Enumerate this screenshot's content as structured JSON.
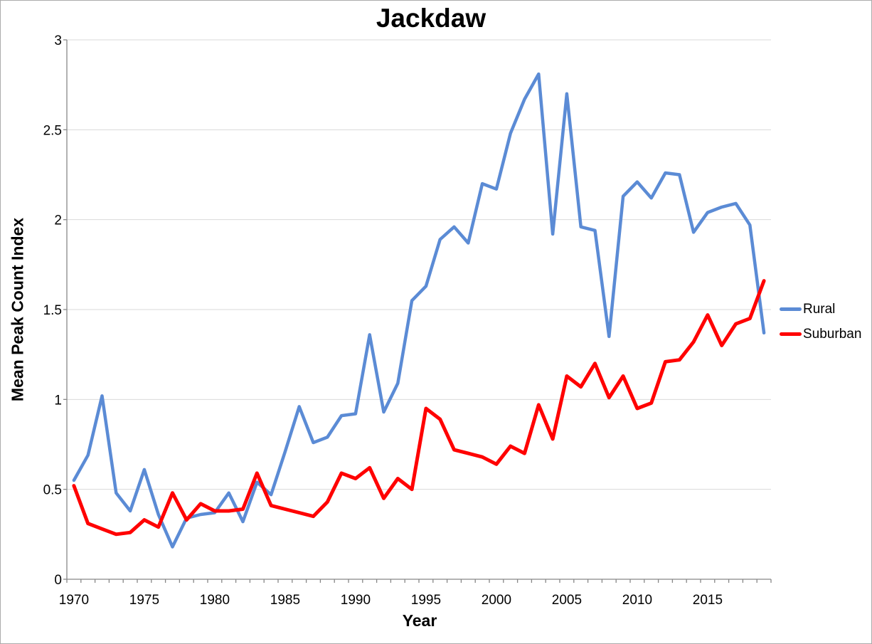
{
  "chart_data": {
    "type": "line",
    "title": "Jackdaw",
    "xlabel": "Year",
    "ylabel": "Mean Peak Count Index",
    "ylim": [
      0,
      3
    ],
    "xlim": [
      1970,
      2019
    ],
    "grid": "horizontal-only",
    "grid_color": "#D9D9D9",
    "axis_color": "#878787",
    "legend_position": "right-middle",
    "yticks": [
      0,
      0.5,
      1,
      1.5,
      2,
      2.5,
      3
    ],
    "ytick_labels": [
      "0",
      "0.5",
      "1",
      "1.5",
      "2",
      "2.5",
      "3"
    ],
    "xticks": [
      1970,
      1975,
      1980,
      1985,
      1990,
      1995,
      2000,
      2005,
      2010,
      2015
    ],
    "xtick_labels": [
      "1970",
      "1975",
      "1980",
      "1985",
      "1990",
      "1995",
      "2000",
      "2005",
      "2010",
      "2015"
    ],
    "x": [
      1970,
      1971,
      1972,
      1973,
      1974,
      1975,
      1976,
      1977,
      1978,
      1979,
      1980,
      1981,
      1982,
      1983,
      1984,
      1985,
      1986,
      1987,
      1988,
      1989,
      1990,
      1991,
      1992,
      1993,
      1994,
      1995,
      1996,
      1997,
      1998,
      1999,
      2000,
      2001,
      2002,
      2003,
      2004,
      2005,
      2006,
      2007,
      2008,
      2009,
      2010,
      2011,
      2012,
      2013,
      2014,
      2015,
      2016,
      2017,
      2018,
      2019
    ],
    "series": [
      {
        "name": "Rural",
        "color": "#5B8BD5",
        "values": [
          0.55,
          0.69,
          1.02,
          0.48,
          0.38,
          0.61,
          0.36,
          0.18,
          0.34,
          0.36,
          0.37,
          0.48,
          0.32,
          0.54,
          0.47,
          0.71,
          0.96,
          0.76,
          0.79,
          0.91,
          0.92,
          1.36,
          0.93,
          1.09,
          1.55,
          1.63,
          1.89,
          1.96,
          1.87,
          2.2,
          2.17,
          2.48,
          2.67,
          2.81,
          1.92,
          2.7,
          1.96,
          1.94,
          1.35,
          2.13,
          2.21,
          2.12,
          2.26,
          2.25,
          1.93,
          2.04,
          2.07,
          2.09,
          1.97,
          1.37
        ]
      },
      {
        "name": "Suburban",
        "color": "#FF0000",
        "values": [
          0.52,
          0.31,
          0.28,
          0.25,
          0.26,
          0.33,
          0.29,
          0.48,
          0.33,
          0.42,
          0.38,
          0.38,
          0.39,
          0.59,
          0.41,
          0.39,
          0.37,
          0.35,
          0.43,
          0.59,
          0.56,
          0.62,
          0.45,
          0.56,
          0.5,
          0.95,
          0.89,
          0.72,
          0.7,
          0.68,
          0.64,
          0.74,
          0.7,
          0.97,
          0.78,
          1.13,
          1.07,
          1.2,
          1.01,
          1.13,
          0.95,
          0.98,
          1.21,
          1.22,
          1.32,
          1.47,
          1.3,
          1.42,
          1.45,
          1.66
        ]
      }
    ]
  }
}
